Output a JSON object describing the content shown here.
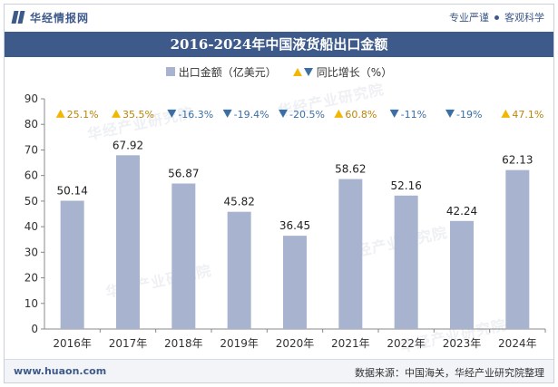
{
  "header": {
    "brand": "华经情报网",
    "slogan_left": "专业严谨",
    "slogan_right": "客观科学"
  },
  "title": "2016-2024年中国液货船出口金额",
  "legend": {
    "bar_label": "出口金额（亿美元）",
    "growth_label": "同比增长（%）"
  },
  "watermark_text": "华经产业研究院",
  "footer": {
    "site": "www.huaon.com",
    "source": "数据来源：中国海关，华经产业研究院整理"
  },
  "colors": {
    "bar": "#a8b3cf",
    "up": "#f2b705",
    "down": "#3a6ea5",
    "brand": "#3e5a8a"
  },
  "chart_data": {
    "type": "bar",
    "title": "2016-2024年中国液货船出口金额",
    "categories": [
      "2016年",
      "2017年",
      "2018年",
      "2019年",
      "2020年",
      "2021年",
      "2022年",
      "2023年",
      "2024年"
    ],
    "series": [
      {
        "name": "出口金额（亿美元）",
        "values": [
          50.14,
          67.92,
          56.87,
          45.82,
          36.45,
          58.62,
          52.16,
          42.24,
          62.13
        ]
      }
    ],
    "growth": {
      "name": "同比增长（%）",
      "labels": [
        "25.1%",
        "35.5%",
        "-16.3%",
        "-19.4%",
        "-20.5%",
        "60.8%",
        "-11%",
        "-19%",
        "47.1%"
      ],
      "direction": [
        "up",
        "up",
        "down",
        "down",
        "down",
        "up",
        "down",
        "down",
        "up"
      ]
    },
    "ylim": [
      0,
      90
    ],
    "yticks": [
      0,
      10,
      20,
      30,
      40,
      50,
      60,
      70,
      80,
      90
    ],
    "grid": false,
    "legend_position": "top"
  }
}
